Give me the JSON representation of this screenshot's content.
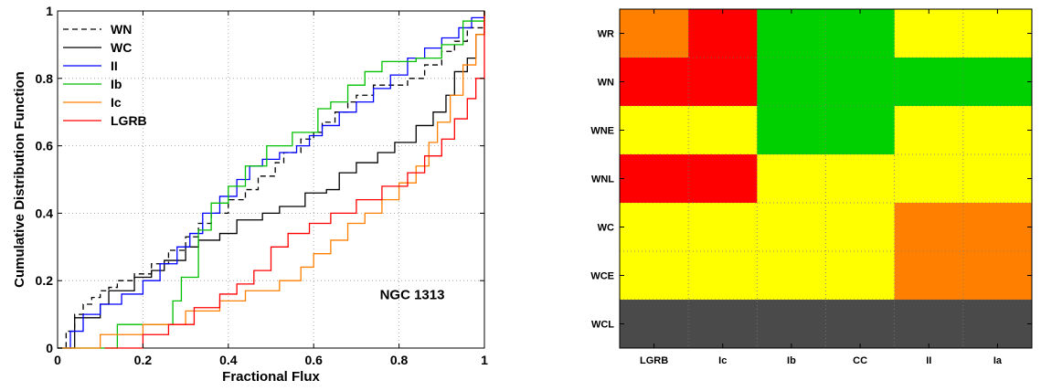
{
  "chart_data": [
    {
      "type": "line",
      "step": true,
      "xlabel": "Fractional Flux",
      "ylabel": "Cumulative Distribution Function",
      "xlim": [
        0,
        1
      ],
      "ylim": [
        0,
        1
      ],
      "xticks": [
        "0",
        "0.2",
        "0.4",
        "0.6",
        "0.8",
        "1"
      ],
      "yticks": [
        "0",
        "0.2",
        "0.4",
        "0.6",
        "0.8",
        "1"
      ],
      "grid": true,
      "legend": "top-left",
      "annotation": "NGC 1313",
      "series": [
        {
          "name": "WN",
          "color": "#000000",
          "dash": true,
          "x": [
            0,
            0.02,
            0.04,
            0.06,
            0.08,
            0.1,
            0.12,
            0.14,
            0.18,
            0.22,
            0.26,
            0.3,
            0.33,
            0.36,
            0.4,
            0.44,
            0.47,
            0.51,
            0.53,
            0.57,
            0.6,
            0.62,
            0.65,
            0.68,
            0.7,
            0.74,
            0.82,
            0.86,
            0.9,
            0.93,
            0.96,
            1.0
          ],
          "y": [
            0,
            0.05,
            0.1,
            0.13,
            0.15,
            0.17,
            0.18,
            0.2,
            0.22,
            0.25,
            0.29,
            0.33,
            0.37,
            0.4,
            0.44,
            0.47,
            0.51,
            0.55,
            0.58,
            0.62,
            0.64,
            0.67,
            0.7,
            0.73,
            0.75,
            0.78,
            0.8,
            0.84,
            0.88,
            0.91,
            0.95,
            1.0
          ]
        },
        {
          "name": "WC",
          "color": "#000000",
          "dash": false,
          "x": [
            0,
            0.04,
            0.1,
            0.12,
            0.18,
            0.22,
            0.25,
            0.3,
            0.33,
            0.38,
            0.42,
            0.48,
            0.52,
            0.58,
            0.63,
            0.66,
            0.7,
            0.75,
            0.79,
            0.84,
            0.88,
            0.91,
            0.93,
            0.96,
            0.98,
            1.0
          ],
          "y": [
            0,
            0.09,
            0.13,
            0.17,
            0.21,
            0.23,
            0.26,
            0.3,
            0.32,
            0.34,
            0.38,
            0.4,
            0.42,
            0.46,
            0.47,
            0.52,
            0.55,
            0.58,
            0.61,
            0.66,
            0.7,
            0.75,
            0.82,
            0.86,
            0.93,
            1.0
          ]
        },
        {
          "name": "II",
          "color": "#0000ff",
          "dash": false,
          "x": [
            0,
            0.03,
            0.06,
            0.1,
            0.15,
            0.2,
            0.24,
            0.28,
            0.31,
            0.34,
            0.38,
            0.42,
            0.45,
            0.48,
            0.52,
            0.56,
            0.59,
            0.62,
            0.66,
            0.7,
            0.74,
            0.78,
            0.82,
            0.86,
            0.9,
            0.94,
            0.97,
            1.0
          ],
          "y": [
            0,
            0.05,
            0.1,
            0.13,
            0.16,
            0.2,
            0.25,
            0.3,
            0.34,
            0.4,
            0.45,
            0.5,
            0.54,
            0.56,
            0.58,
            0.6,
            0.63,
            0.66,
            0.7,
            0.73,
            0.77,
            0.81,
            0.86,
            0.89,
            0.92,
            0.95,
            0.98,
            1.0
          ]
        },
        {
          "name": "Ib",
          "color": "#00c000",
          "dash": false,
          "x": [
            0,
            0.14,
            0.27,
            0.29,
            0.33,
            0.36,
            0.4,
            0.44,
            0.49,
            0.55,
            0.61,
            0.64,
            0.68,
            0.72,
            0.76,
            0.84,
            0.9,
            0.95,
            1.0
          ],
          "y": [
            0,
            0.07,
            0.14,
            0.21,
            0.35,
            0.43,
            0.48,
            0.54,
            0.6,
            0.64,
            0.71,
            0.73,
            0.78,
            0.82,
            0.85,
            0.86,
            0.9,
            0.97,
            1.0
          ],
          "x_first": 0.14
        },
        {
          "name": "Ic",
          "color": "#ff7f00",
          "dash": false,
          "x": [
            0,
            0.1,
            0.2,
            0.3,
            0.38,
            0.44,
            0.52,
            0.57,
            0.6,
            0.64,
            0.68,
            0.72,
            0.76,
            0.8,
            0.84,
            0.87,
            0.89,
            0.92,
            0.95,
            0.98,
            1.0
          ],
          "y": [
            0,
            0.04,
            0.07,
            0.11,
            0.14,
            0.17,
            0.2,
            0.24,
            0.28,
            0.32,
            0.37,
            0.4,
            0.44,
            0.49,
            0.54,
            0.61,
            0.67,
            0.75,
            0.84,
            0.93,
            1.0
          ]
        },
        {
          "name": "LGRB",
          "color": "#ff0000",
          "dash": false,
          "x": [
            0.11,
            0.2,
            0.26,
            0.32,
            0.38,
            0.42,
            0.46,
            0.5,
            0.54,
            0.59,
            0.64,
            0.7,
            0.76,
            0.82,
            0.86,
            0.9,
            0.93,
            0.96,
            0.98,
            1.0
          ],
          "y": [
            0,
            0.04,
            0.07,
            0.12,
            0.16,
            0.19,
            0.23,
            0.3,
            0.34,
            0.37,
            0.4,
            0.44,
            0.48,
            0.52,
            0.57,
            0.62,
            0.68,
            0.74,
            0.8,
            1.0
          ]
        }
      ]
    },
    {
      "type": "heatmap",
      "rows": [
        "WR",
        "WN",
        "WNE",
        "WNL",
        "WC",
        "WCE",
        "WCL"
      ],
      "columns": [
        "LGRB",
        "Ic",
        "Ib",
        "CC",
        "II",
        "Ia"
      ],
      "palette": {
        "O": "#ff8000",
        "R": "#ff0000",
        "G": "#00d000",
        "Y": "#ffff00",
        "K": "#4a4a4a"
      },
      "cells": [
        [
          "O",
          "R",
          "G",
          "G",
          "Y",
          "Y"
        ],
        [
          "R",
          "R",
          "G",
          "G",
          "G",
          "G"
        ],
        [
          "Y",
          "Y",
          "G",
          "G",
          "Y",
          "Y"
        ],
        [
          "R",
          "R",
          "Y",
          "Y",
          "Y",
          "Y"
        ],
        [
          "Y",
          "Y",
          "Y",
          "Y",
          "O",
          "O"
        ],
        [
          "Y",
          "Y",
          "Y",
          "Y",
          "O",
          "O"
        ],
        [
          "K",
          "K",
          "K",
          "K",
          "K",
          "K"
        ]
      ],
      "grid": true
    }
  ]
}
